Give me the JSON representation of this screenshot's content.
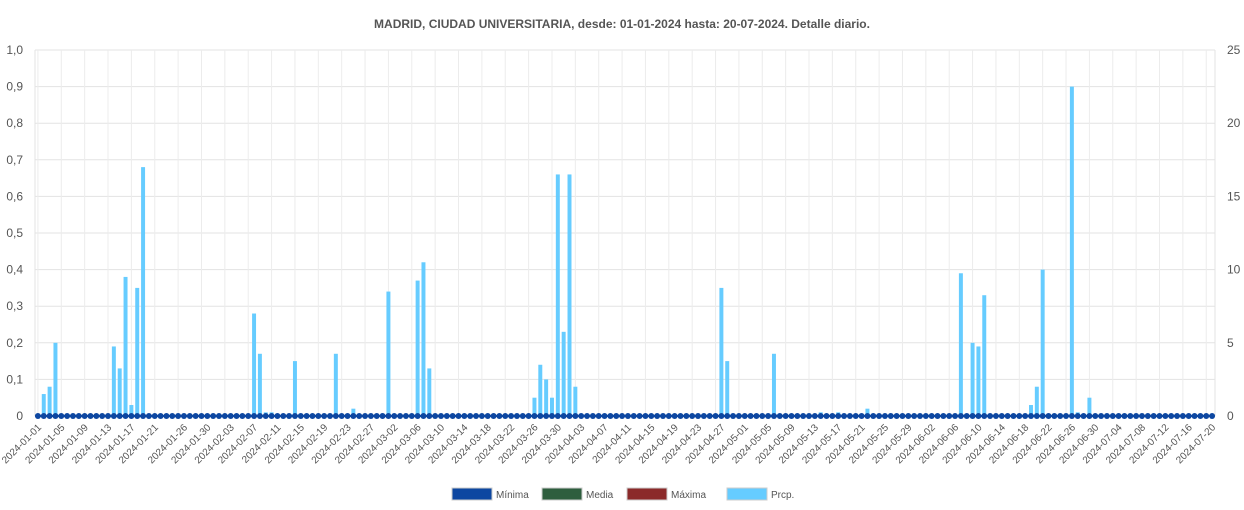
{
  "chart_data": {
    "type": "bar",
    "title": "MADRID, CIUDAD UNIVERSITARIA, desde: 01-01-2024 hasta: 20-07-2024. Detalle diario.",
    "start_date": "2024-01-01",
    "end_date": "2024-07-20",
    "left_axis": {
      "ylim": [
        0,
        1.0
      ],
      "ticks": [
        "0",
        "0,1",
        "0,2",
        "0,3",
        "0,4",
        "0,5",
        "0,6",
        "0,7",
        "0,8",
        "0,9",
        "1,0"
      ]
    },
    "right_axis": {
      "ylim": [
        0,
        25
      ],
      "ticks": [
        "0",
        "5",
        "10",
        "15",
        "20",
        "25"
      ]
    },
    "x_tick_labels": [
      "2024-01-01",
      "2024-01-05",
      "2024-01-09",
      "2024-01-13",
      "2024-01-17",
      "2024-01-21",
      "2024-01-26",
      "2024-01-30",
      "2024-02-03",
      "2024-02-07",
      "2024-02-11",
      "2024-02-15",
      "2024-02-19",
      "2024-02-23",
      "2024-02-27",
      "2024-03-02",
      "2024-03-06",
      "2024-03-10",
      "2024-03-14",
      "2024-03-18",
      "2024-03-22",
      "2024-03-26",
      "2024-03-30",
      "2024-04-03",
      "2024-04-07",
      "2024-04-11",
      "2024-04-15",
      "2024-04-19",
      "2024-04-23",
      "2024-04-27",
      "2024-05-01",
      "2024-05-05",
      "2024-05-09",
      "2024-05-13",
      "2024-05-17",
      "2024-05-21",
      "2024-05-25",
      "2024-05-29",
      "2024-06-02",
      "2024-06-06",
      "2024-06-10",
      "2024-06-14",
      "2024-06-18",
      "2024-06-22",
      "2024-06-26",
      "2024-06-30",
      "2024-07-04",
      "2024-07-08",
      "2024-07-12",
      "2024-07-16",
      "2024-07-20"
    ],
    "legend": [
      {
        "name": "Mínima",
        "color": "#0d47a1"
      },
      {
        "name": "Media",
        "color": "#2e5e3e"
      },
      {
        "name": "Máxima",
        "color": "#8b2a2a"
      },
      {
        "name": "Prcp.",
        "color": "#66ccff"
      }
    ],
    "series": [
      {
        "name": "Prcp.",
        "type": "bar",
        "axis": "left",
        "color": "#66ccff",
        "points": [
          [
            "2024-01-02",
            0.06
          ],
          [
            "2024-01-03",
            0.08
          ],
          [
            "2024-01-04",
            0.2
          ],
          [
            "2024-01-14",
            0.19
          ],
          [
            "2024-01-15",
            0.13
          ],
          [
            "2024-01-16",
            0.38
          ],
          [
            "2024-01-17",
            0.03
          ],
          [
            "2024-01-18",
            0.35
          ],
          [
            "2024-01-19",
            0.68
          ],
          [
            "2024-02-07",
            0.28
          ],
          [
            "2024-02-08",
            0.17
          ],
          [
            "2024-02-09",
            0.01
          ],
          [
            "2024-02-10",
            0.01
          ],
          [
            "2024-02-14",
            0.15
          ],
          [
            "2024-02-21",
            0.17
          ],
          [
            "2024-02-24",
            0.02
          ],
          [
            "2024-03-01",
            0.34
          ],
          [
            "2024-03-06",
            0.37
          ],
          [
            "2024-03-07",
            0.42
          ],
          [
            "2024-03-08",
            0.13
          ],
          [
            "2024-03-26",
            0.05
          ],
          [
            "2024-03-27",
            0.14
          ],
          [
            "2024-03-28",
            0.1
          ],
          [
            "2024-03-29",
            0.05
          ],
          [
            "2024-03-30",
            0.66
          ],
          [
            "2024-03-31",
            0.23
          ],
          [
            "2024-04-01",
            0.66
          ],
          [
            "2024-04-02",
            0.08
          ],
          [
            "2024-04-27",
            0.35
          ],
          [
            "2024-04-28",
            0.15
          ],
          [
            "2024-05-06",
            0.17
          ],
          [
            "2024-05-14",
            0.01
          ],
          [
            "2024-05-17",
            0.01
          ],
          [
            "2024-05-22",
            0.02
          ],
          [
            "2024-06-07",
            0.39
          ],
          [
            "2024-06-09",
            0.2
          ],
          [
            "2024-06-10",
            0.19
          ],
          [
            "2024-06-11",
            0.33
          ],
          [
            "2024-06-19",
            0.03
          ],
          [
            "2024-06-20",
            0.08
          ],
          [
            "2024-06-21",
            0.4
          ],
          [
            "2024-06-26",
            0.9
          ],
          [
            "2024-06-27",
            0.01
          ],
          [
            "2024-06-29",
            0.05
          ]
        ]
      },
      {
        "name": "Mínima",
        "type": "line",
        "axis": "right",
        "color": "#0d47a1",
        "constant_value": 0
      }
    ]
  }
}
